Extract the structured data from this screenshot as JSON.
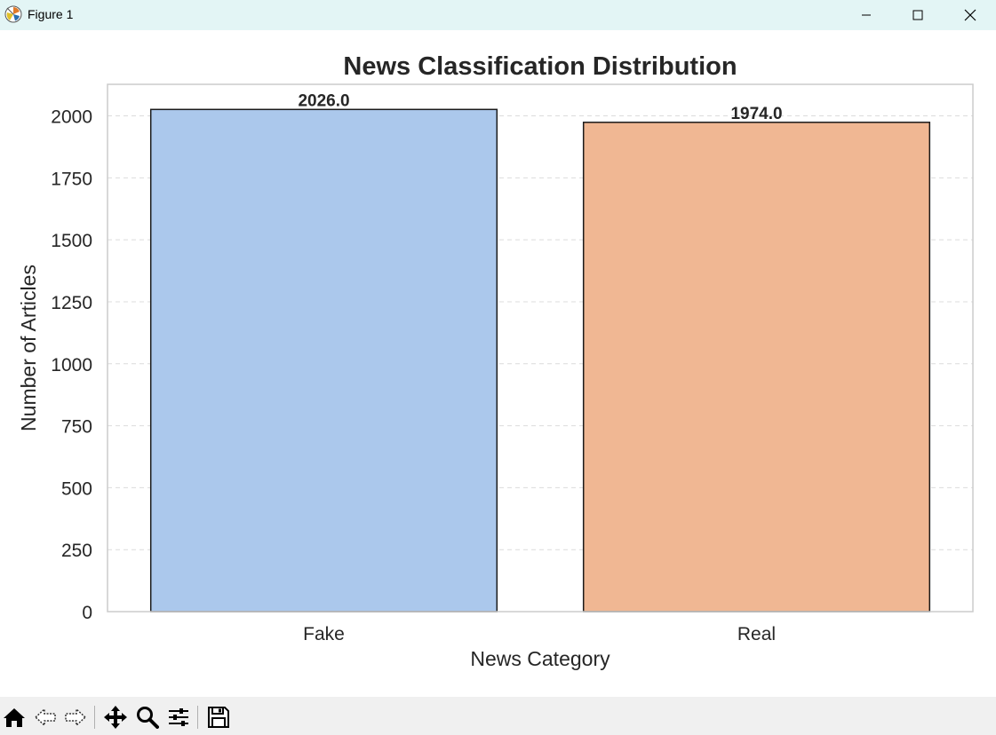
{
  "window": {
    "title": "Figure 1"
  },
  "icons": {
    "app": "matplotlib-icon",
    "minimize": "minimize-icon",
    "maximize": "maximize-icon",
    "close": "close-icon"
  },
  "toolbar": {
    "items": [
      "home-icon",
      "back-icon",
      "forward-icon",
      "pan-icon",
      "zoom-icon",
      "configure-subplots-icon",
      "save-icon"
    ]
  },
  "chart_data": {
    "type": "bar",
    "title": "News Classification Distribution",
    "xlabel": "News Category",
    "ylabel": "Number of Articles",
    "categories": [
      "Fake",
      "Real"
    ],
    "values": [
      2026.0,
      1974.0
    ],
    "value_labels": [
      "2026.0",
      "1974.0"
    ],
    "colors": [
      "#abc8ec",
      "#f0b793"
    ],
    "edge_color": "#1a1a1a",
    "ylim": [
      0,
      2127.3
    ],
    "yticks": [
      0,
      250,
      500,
      750,
      1000,
      1250,
      1500,
      1750,
      2000
    ],
    "ytick_labels": [
      "0",
      "250",
      "500",
      "750",
      "1000",
      "1250",
      "1500",
      "1750",
      "2000"
    ],
    "grid": true,
    "grid_axis": "y",
    "grid_style": "dashed"
  }
}
